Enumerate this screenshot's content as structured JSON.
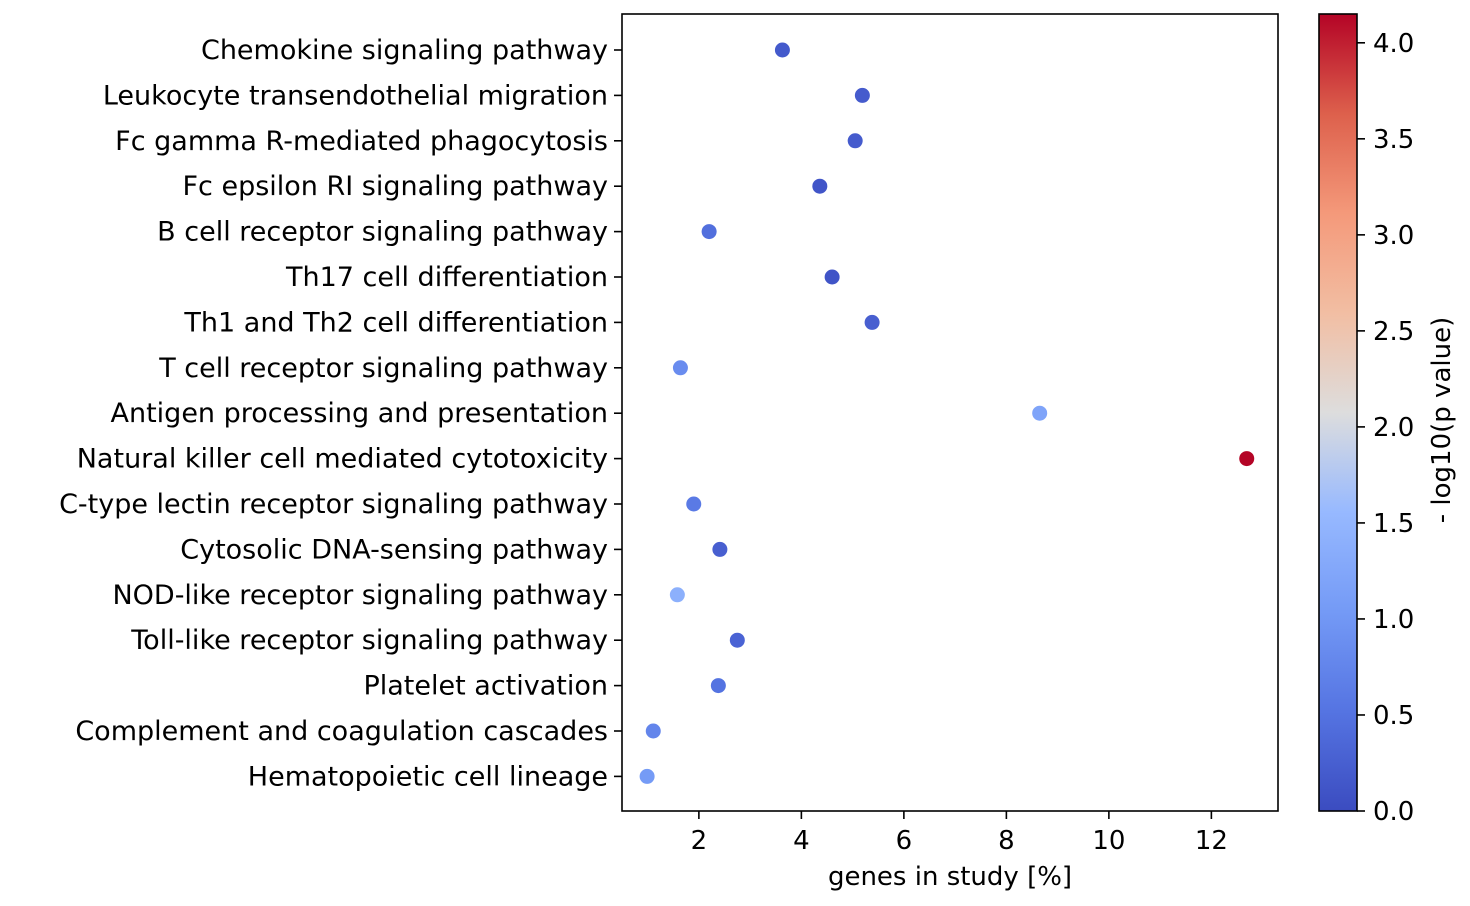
{
  "chart_data": {
    "type": "scatter",
    "title": "",
    "xlabel": "genes in study [%]",
    "ylabel": "",
    "xlim": [
      0.5,
      13.3
    ],
    "xticks": [
      2,
      4,
      6,
      8,
      10,
      12
    ],
    "grid": false,
    "categories": [
      "Chemokine signaling pathway",
      "Leukocyte transendothelial migration",
      "Fc gamma R-mediated phagocytosis",
      "Fc epsilon RI signaling pathway",
      "B cell receptor signaling pathway",
      "Th17 cell differentiation",
      "Th1 and Th2 cell differentiation",
      "T cell receptor signaling pathway",
      "Antigen processing and presentation",
      "Natural killer cell mediated cytotoxicity",
      "C-type lectin receptor signaling pathway",
      "Cytosolic DNA-sensing pathway",
      "NOD-like receptor signaling pathway",
      "Toll-like receptor signaling pathway",
      "Platelet activation",
      "Complement and coagulation cascades",
      "Hematopoietic cell lineage"
    ],
    "points": [
      {
        "category": "Chemokine signaling pathway",
        "x": 3.63,
        "c": 0.18
      },
      {
        "category": "Leukocyte transendothelial migration",
        "x": 5.19,
        "c": 0.2
      },
      {
        "category": "Fc gamma R-mediated phagocytosis",
        "x": 5.05,
        "c": 0.2
      },
      {
        "category": "Fc epsilon RI signaling pathway",
        "x": 4.36,
        "c": 0.12
      },
      {
        "category": "B cell receptor signaling pathway",
        "x": 2.2,
        "c": 0.45
      },
      {
        "category": "Th17 cell differentiation",
        "x": 4.6,
        "c": 0.1
      },
      {
        "category": "Th1 and Th2 cell differentiation",
        "x": 5.38,
        "c": 0.25
      },
      {
        "category": "T cell receptor signaling pathway",
        "x": 1.64,
        "c": 0.85
      },
      {
        "category": "Antigen processing and presentation",
        "x": 8.65,
        "c": 1.2
      },
      {
        "category": "Natural killer cell mediated cytotoxicity",
        "x": 12.69,
        "c": 4.15
      },
      {
        "category": "C-type lectin receptor signaling pathway",
        "x": 1.9,
        "c": 0.6
      },
      {
        "category": "Cytosolic DNA-sensing pathway",
        "x": 2.41,
        "c": 0.25
      },
      {
        "category": "NOD-like receptor signaling pathway",
        "x": 1.58,
        "c": 1.4
      },
      {
        "category": "Toll-like receptor signaling pathway",
        "x": 2.75,
        "c": 0.3
      },
      {
        "category": "Platelet activation",
        "x": 2.38,
        "c": 0.5
      },
      {
        "category": "Complement and coagulation cascades",
        "x": 1.11,
        "c": 0.75
      },
      {
        "category": "Hematopoietic cell lineage",
        "x": 0.99,
        "c": 1.05
      }
    ],
    "colorbar": {
      "label": "- log10(p value)",
      "colormap": "coolwarm",
      "range": [
        0.0,
        4.15
      ],
      "ticks": [
        "0.0",
        "0.5",
        "1.0",
        "1.5",
        "2.0",
        "2.5",
        "3.0",
        "3.5",
        "4.0"
      ]
    },
    "colors": {
      "cold": "#3b4cc0",
      "neutral": "#dddddd",
      "warm": "#b40426"
    }
  }
}
